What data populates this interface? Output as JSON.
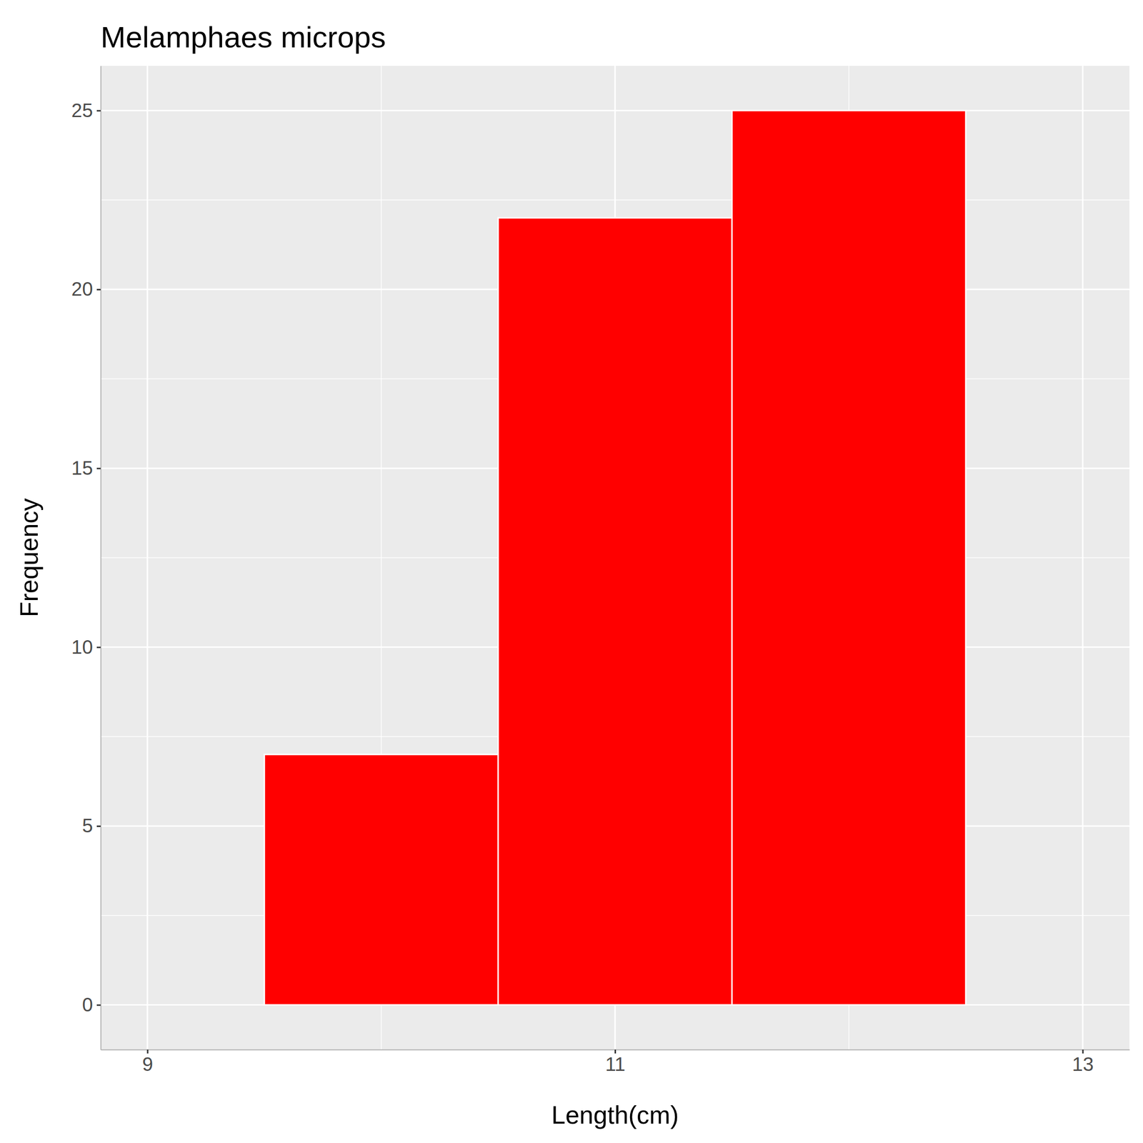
{
  "chart_data": {
    "type": "histogram",
    "title": "Melamphaes microps",
    "x_label": "Length(cm)",
    "y_label": "Frequency",
    "bins": [
      9.5,
      10.5,
      11.5,
      12.5
    ],
    "values": [
      7,
      22,
      25
    ],
    "color": "#ff0000",
    "xlim": [
      8.8,
      13.2
    ],
    "xticks": [
      9,
      11,
      13
    ],
    "ylim": [
      -1.25,
      26.25
    ],
    "yticks": [
      0,
      5,
      10,
      15,
      20,
      25
    ],
    "grid": true
  }
}
